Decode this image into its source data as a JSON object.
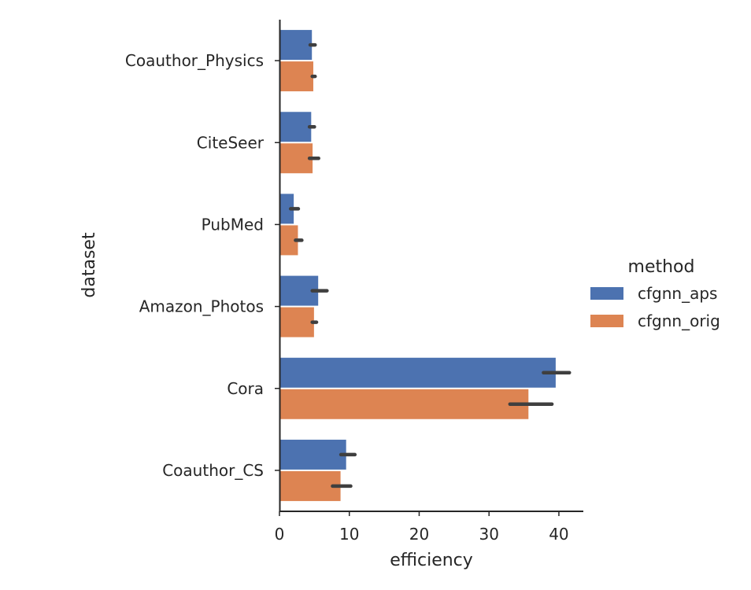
{
  "chart_data": {
    "type": "bar",
    "orientation": "horizontal",
    "xlabel": "efficiency",
    "ylabel": "dataset",
    "xlim": [
      0,
      43.5
    ],
    "xticks": [
      0,
      10,
      20,
      30,
      40
    ],
    "grid": false,
    "categories": [
      "Coauthor_Physics",
      "CiteSeer",
      "PubMed",
      "Amazon_Photos",
      "Cora",
      "Coauthor_CS"
    ],
    "legend": {
      "title": "method",
      "placement": "center-right"
    },
    "series": [
      {
        "name": "cfgnn_aps",
        "color": "#4c72b0",
        "values": [
          4.7,
          4.6,
          2.1,
          5.6,
          39.6,
          9.6
        ],
        "error_low": [
          4.4,
          4.3,
          1.6,
          4.7,
          37.8,
          8.8
        ],
        "error_high": [
          5.1,
          5.0,
          2.7,
          6.8,
          41.5,
          10.8
        ]
      },
      {
        "name": "cfgnn_orig",
        "color": "#dd8452",
        "values": [
          4.9,
          4.8,
          2.7,
          5.0,
          35.7,
          8.8
        ],
        "error_low": [
          4.7,
          4.3,
          2.3,
          4.7,
          33.0,
          7.6
        ],
        "error_high": [
          5.1,
          5.6,
          3.2,
          5.3,
          39.0,
          10.2
        ]
      }
    ]
  }
}
